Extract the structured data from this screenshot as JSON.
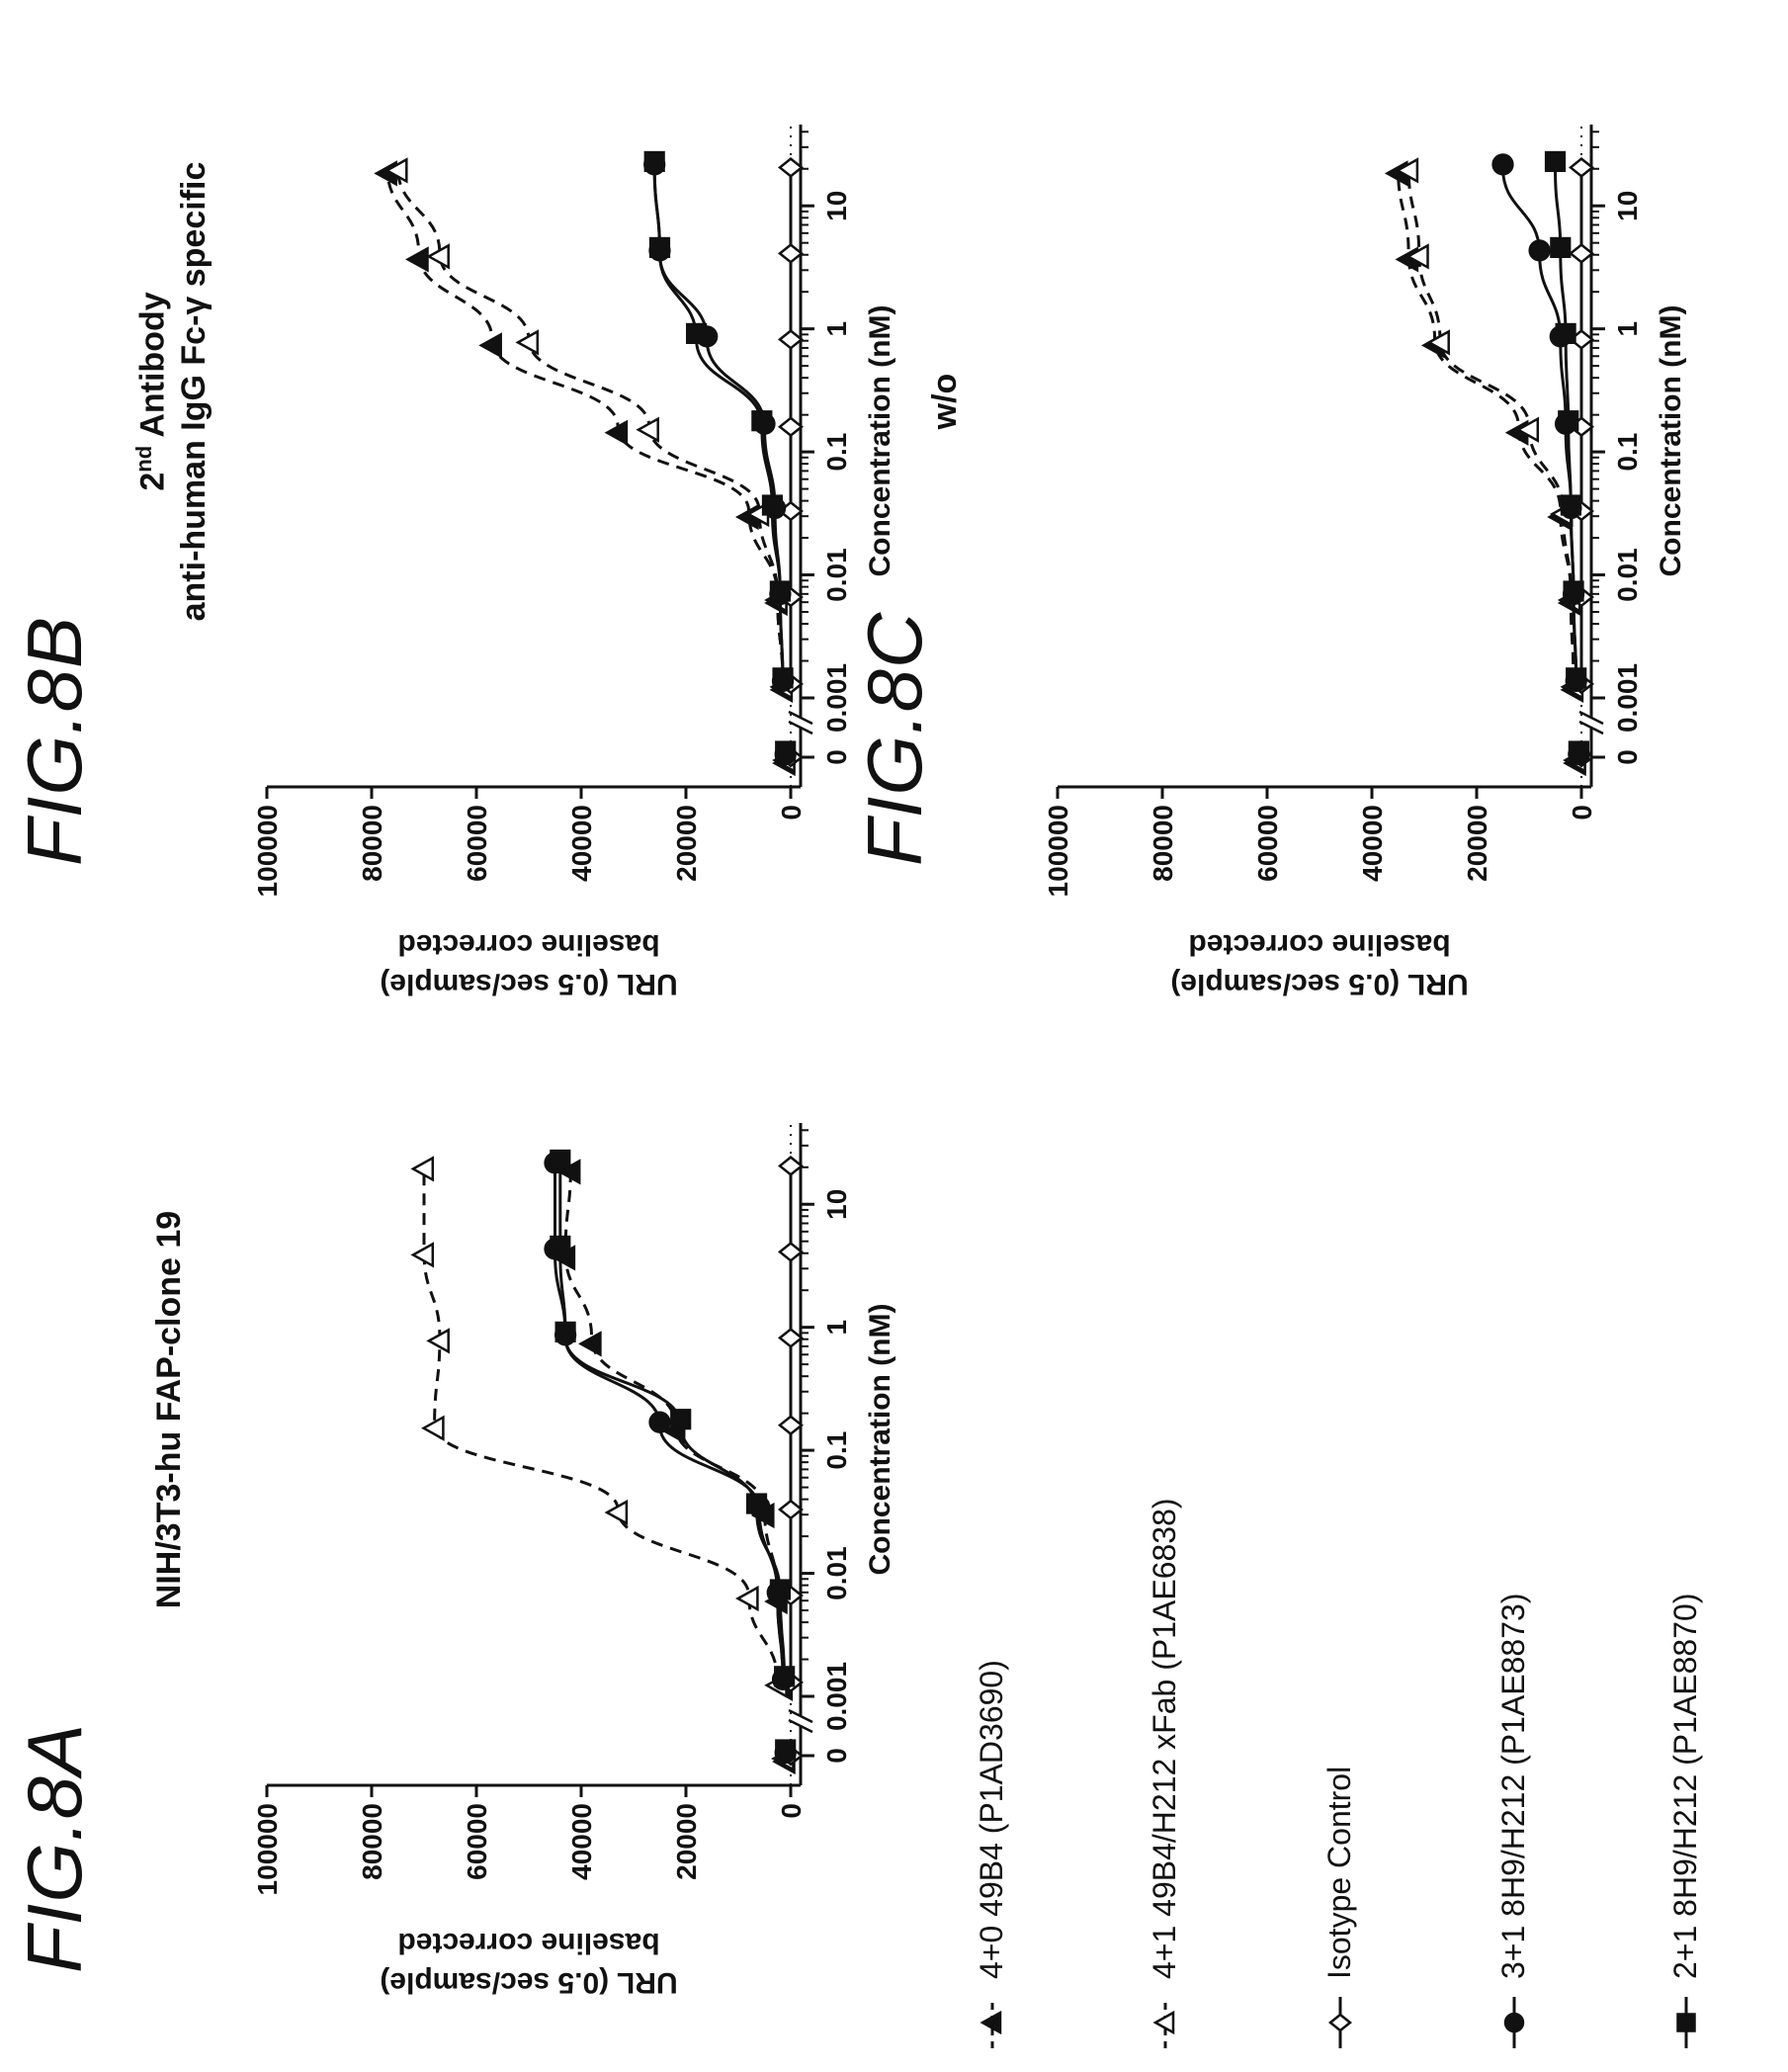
{
  "figures": {
    "a": {
      "label": "FIG.8A",
      "title": "NIH/3T3-hu FAP-clone 19"
    },
    "b": {
      "label": "FIG.8B",
      "title_line1_sup": "nd",
      "title_line1_base": "2",
      "title_line1_rest": " Antibody",
      "title_line2": "anti-human IgG Fc-γ specific"
    },
    "c": {
      "label": "FIG.8C",
      "title": "w/o"
    }
  },
  "legend": [
    {
      "text": "4+0 49B4 (P1AD3690)",
      "marker": "triangle-filled",
      "line": "dashed"
    },
    {
      "text": "4+1 49B4/H212 xFab (P1AE6838)",
      "marker": "triangle-open",
      "line": "dashed"
    },
    {
      "text": "Isotype Control",
      "marker": "diamond-open",
      "line": "solid"
    },
    {
      "text": "3+1 8H9/H212 (P1AE8873)",
      "marker": "circle-filled",
      "line": "solid"
    },
    {
      "text": "2+1 8H9/H212 (P1AE8870)",
      "marker": "square-filled",
      "line": "solid"
    }
  ],
  "colors": {
    "ink": "#111111"
  },
  "chart_data": [
    {
      "id": "8A",
      "type": "scatter",
      "title": "NIH/3T3-hu FAP-clone 19",
      "xlabel": "Concentration (nM)",
      "ylabel_line1": "URL (0.5 sec/sample)",
      "ylabel_line2": "baseline corrected",
      "x_scale": "log with zero break",
      "x_ticks": [
        "0",
        "0.001",
        "0.01",
        "0.1",
        "1",
        "10"
      ],
      "y_ticks": [
        "0",
        "20000",
        "40000",
        "60000",
        "80000",
        "100000"
      ],
      "ylim": [
        0,
        100000
      ],
      "x": [
        0,
        0.0013,
        0.0066,
        0.033,
        0.16,
        0.82,
        4.1,
        20.5
      ],
      "series": [
        {
          "name": "4+0 49B4 (P1AD3690)",
          "values": [
            1000,
            1500,
            2500,
            5000,
            22000,
            38000,
            43000,
            42000
          ]
        },
        {
          "name": "4+1 49B4/H212 xFab (P1AE6838)",
          "values": [
            1200,
            2500,
            8000,
            33000,
            68000,
            67000,
            70000,
            70000
          ]
        },
        {
          "name": "Isotype Control",
          "values": [
            0,
            0,
            0,
            0,
            0,
            0,
            0,
            0
          ]
        },
        {
          "name": "3+1 8H9/H212 (P1AE8873)",
          "values": [
            1000,
            1500,
            2500,
            6000,
            25000,
            43000,
            45000,
            45000
          ]
        },
        {
          "name": "2+1 8H9/H212 (P1AE8870)",
          "values": [
            1000,
            1200,
            2000,
            6500,
            21000,
            43000,
            44000,
            44000
          ]
        }
      ]
    },
    {
      "id": "8B",
      "type": "scatter",
      "title": "2nd Antibody anti-human IgG Fc-γ specific",
      "xlabel": "Concentration (nM)",
      "ylabel_line1": "URL (0.5 sec/sample)",
      "ylabel_line2": "baseline corrected",
      "x_scale": "log with zero break",
      "x_ticks": [
        "0",
        "0.001",
        "0.01",
        "0.1",
        "1",
        "10"
      ],
      "y_ticks": [
        "0",
        "20000",
        "40000",
        "60000",
        "80000",
        "100000"
      ],
      "ylim": [
        0,
        100000
      ],
      "x": [
        0,
        0.0013,
        0.0066,
        0.033,
        0.16,
        0.82,
        4.1,
        20.5
      ],
      "series": [
        {
          "name": "4+0 49B4 (P1AD3690)",
          "values": [
            1000,
            1500,
            2500,
            8000,
            33000,
            57000,
            71000,
            77000
          ]
        },
        {
          "name": "4+1 49B4/H212 xFab (P1AE6838)",
          "values": [
            1000,
            1500,
            2500,
            6000,
            27000,
            50000,
            67000,
            75000
          ]
        },
        {
          "name": "Isotype Control",
          "values": [
            0,
            0,
            0,
            0,
            0,
            0,
            0,
            0
          ]
        },
        {
          "name": "3+1 8H9/H212 (P1AE8873)",
          "values": [
            1000,
            1500,
            2000,
            3000,
            5000,
            16000,
            25000,
            26000
          ]
        },
        {
          "name": "2+1 8H9/H212 (P1AE8870)",
          "values": [
            1000,
            1500,
            2000,
            3500,
            5500,
            18000,
            25000,
            26000
          ]
        }
      ]
    },
    {
      "id": "8C",
      "type": "scatter",
      "title": "w/o",
      "xlabel": "Concentration (nM)",
      "ylabel_line1": "URL (0.5 sec/sample)",
      "ylabel_line2": "baseline corrected",
      "x_scale": "log with zero break",
      "x_ticks": [
        "0",
        "0.001",
        "0.01",
        "0.1",
        "1",
        "10"
      ],
      "y_ticks": [
        "0",
        "20000",
        "40000",
        "60000",
        "80000",
        "100000"
      ],
      "ylim": [
        0,
        100000
      ],
      "x": [
        0,
        0.0013,
        0.0066,
        0.033,
        0.16,
        0.82,
        4.1,
        20.5
      ],
      "series": [
        {
          "name": "4+0 49B4 (P1AD3690)",
          "values": [
            1000,
            1500,
            2000,
            4000,
            12000,
            28000,
            33000,
            35000
          ]
        },
        {
          "name": "4+1 49B4/H212 xFab (P1AE6838)",
          "values": [
            1000,
            1500,
            2000,
            3500,
            10000,
            27000,
            31000,
            33000
          ]
        },
        {
          "name": "Isotype Control",
          "values": [
            0,
            0,
            0,
            0,
            0,
            0,
            0,
            0
          ]
        },
        {
          "name": "3+1 8H9/H212 (P1AE8873)",
          "values": [
            500,
            1000,
            1500,
            2000,
            3000,
            4000,
            8000,
            15000
          ]
        },
        {
          "name": "2+1 8H9/H212 (P1AE8870)",
          "values": [
            500,
            1000,
            1500,
            2000,
            2500,
            3000,
            4000,
            5000
          ]
        }
      ]
    }
  ]
}
